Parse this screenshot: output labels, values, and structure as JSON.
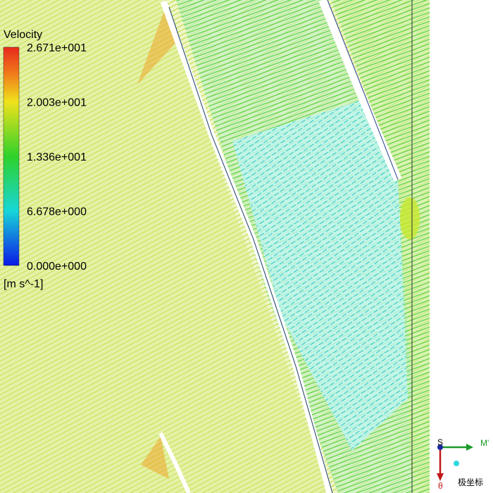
{
  "legend": {
    "title": "Velocity",
    "ticks": [
      "2.671e+001",
      "2.003e+001",
      "1.336e+001",
      "6.678e+000",
      "0.000e+000"
    ],
    "units": "[m s^-1]"
  },
  "axes": {
    "s": "S",
    "m": "M'",
    "theta": "θ",
    "label": "极坐标"
  }
}
